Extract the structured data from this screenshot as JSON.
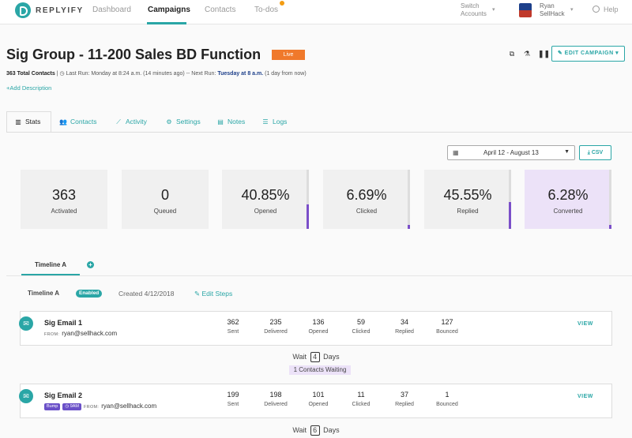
{
  "nav": {
    "brand": "REPLYIFY",
    "links": [
      "Dashboard",
      "Campaigns",
      "Contacts",
      "To-dos"
    ],
    "switch_line1": "Switch",
    "switch_line2": "Accounts",
    "user_name": "Ryan",
    "user_org": "SellHack",
    "help": "Help",
    "accent": "#2aa6a6"
  },
  "campaign": {
    "title": "Sig Group - 11-200 Sales BD Function",
    "status": "Live",
    "edit_label": "EDIT CAMPAIGN",
    "total_contacts": "363 Total Contacts",
    "last_run": "Last Run: Monday at 8:24 a.m. (14 minutes ago)",
    "next_run_prefix": "-- Next Run:",
    "next_run": "Tuesday at 8 a.m.",
    "next_run_suffix": "(1 day from now)",
    "add_description": "Add Description"
  },
  "tabs": [
    {
      "label": "Stats",
      "icon": "bar-chart-icon"
    },
    {
      "label": "Contacts",
      "icon": "users-icon"
    },
    {
      "label": "Activity",
      "icon": "line-chart-icon"
    },
    {
      "label": "Settings",
      "icon": "gear-icon"
    },
    {
      "label": "Notes",
      "icon": "notes-icon"
    },
    {
      "label": "Logs",
      "icon": "list-icon"
    }
  ],
  "date_range": "April 12 - August 13",
  "csv_label": "CSV",
  "stats": [
    {
      "value": "363",
      "label": "Activated",
      "fill": null
    },
    {
      "value": "0",
      "label": "Queued",
      "fill": null
    },
    {
      "value": "40.85%",
      "label": "Opened",
      "fill": 0.4085
    },
    {
      "value": "6.69%",
      "label": "Clicked",
      "fill": 0.0669
    },
    {
      "value": "45.55%",
      "label": "Replied",
      "fill": 0.4555
    },
    {
      "value": "6.28%",
      "label": "Converted",
      "fill": 0.0628
    }
  ],
  "timeline": {
    "tab_label": "Timeline A",
    "name": "Timeline A",
    "status": "Enabled",
    "created": "Created 4/12/2018",
    "edit_steps": "Edit Steps"
  },
  "stat_labels": [
    "Sent",
    "Delivered",
    "Opened",
    "Clicked",
    "Replied",
    "Bounced"
  ],
  "emails": [
    {
      "name": "Sig Email 1",
      "from_label": "FROM:",
      "from": "ryan@sellhack.com",
      "chips": [],
      "values": [
        "362",
        "235",
        "136",
        "59",
        "34",
        "127"
      ],
      "view": "VIEW"
    },
    {
      "name": "Sig Email 2",
      "from_label": "FROM:",
      "from": "ryan@sellhack.com",
      "chips": [
        "Bump",
        "9AM"
      ],
      "values": [
        "199",
        "198",
        "101",
        "11",
        "37",
        "1"
      ],
      "view": "VIEW"
    }
  ],
  "waits": [
    {
      "prefix": "Wait",
      "days": "4",
      "suffix": "Days"
    },
    {
      "prefix": "Wait",
      "days": "6",
      "suffix": "Days"
    }
  ],
  "contacts_waiting": "1 Contacts Waiting"
}
